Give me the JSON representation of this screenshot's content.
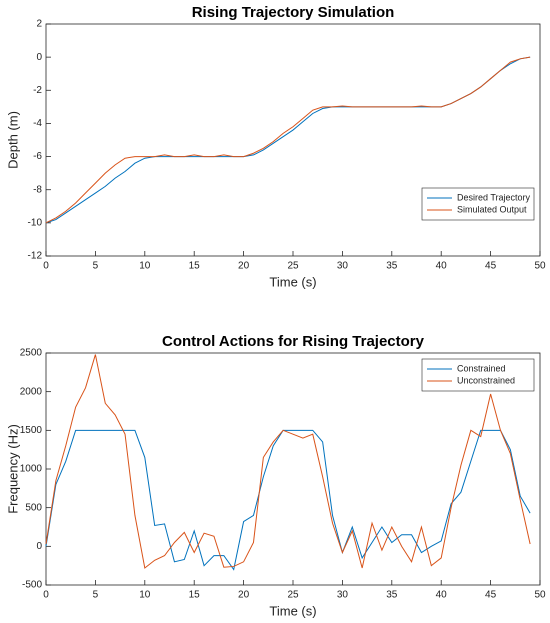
{
  "chart_data": [
    {
      "type": "line",
      "title": "Rising Trajectory Simulation",
      "xlabel": "Time (s)",
      "ylabel": "Depth (m)",
      "x": [
        0,
        1,
        2,
        3,
        4,
        5,
        6,
        7,
        8,
        9,
        10,
        11,
        12,
        13,
        14,
        15,
        16,
        17,
        18,
        19,
        20,
        21,
        22,
        23,
        24,
        25,
        26,
        27,
        28,
        29,
        30,
        31,
        32,
        33,
        34,
        35,
        36,
        37,
        38,
        39,
        40,
        41,
        42,
        43,
        44,
        45,
        46,
        47,
        48,
        49
      ],
      "series": [
        {
          "name": "Desired Trajectory",
          "color": "#0072BD",
          "values": [
            -10,
            -9.8,
            -9.4,
            -9.0,
            -8.6,
            -8.2,
            -7.8,
            -7.3,
            -6.9,
            -6.4,
            -6.1,
            -6.0,
            -6.0,
            -6.0,
            -6.0,
            -6.0,
            -6.0,
            -6.0,
            -6.0,
            -6.0,
            -6.0,
            -5.9,
            -5.6,
            -5.2,
            -4.8,
            -4.4,
            -3.9,
            -3.4,
            -3.1,
            -3.0,
            -3.0,
            -3.0,
            -3.0,
            -3.0,
            -3.0,
            -3.0,
            -3.0,
            -3.0,
            -3.0,
            -3.0,
            -3.0,
            -2.8,
            -2.5,
            -2.2,
            -1.8,
            -1.3,
            -0.8,
            -0.4,
            -0.1,
            0
          ]
        },
        {
          "name": "Simulated Output",
          "color": "#D95319",
          "values": [
            -10,
            -9.7,
            -9.3,
            -8.8,
            -8.2,
            -7.6,
            -7.0,
            -6.5,
            -6.1,
            -6.0,
            -6.0,
            -6.0,
            -5.9,
            -6.0,
            -6.0,
            -5.9,
            -6.0,
            -6.0,
            -5.9,
            -6.0,
            -6.0,
            -5.8,
            -5.5,
            -5.1,
            -4.6,
            -4.2,
            -3.7,
            -3.2,
            -3.0,
            -3.0,
            -2.95,
            -3.0,
            -3.0,
            -3.0,
            -3.0,
            -3.0,
            -3.0,
            -3.0,
            -2.95,
            -3.0,
            -3.0,
            -2.8,
            -2.5,
            -2.2,
            -1.8,
            -1.3,
            -0.8,
            -0.3,
            -0.1,
            0
          ]
        }
      ],
      "xlim": [
        0,
        50
      ],
      "xticks": [
        0,
        5,
        10,
        15,
        20,
        25,
        30,
        35,
        40,
        45,
        50
      ],
      "ylim": [
        -12,
        2
      ],
      "yticks": [
        -12,
        -10,
        -8,
        -6,
        -4,
        -2,
        0,
        2
      ],
      "legend": "lower right"
    },
    {
      "type": "line",
      "title": "Control Actions for Rising Trajectory",
      "xlabel": "Time (s)",
      "ylabel": "Frequency (Hz)",
      "x": [
        0,
        1,
        2,
        3,
        4,
        5,
        6,
        7,
        8,
        9,
        10,
        11,
        12,
        13,
        14,
        15,
        16,
        17,
        18,
        19,
        20,
        21,
        22,
        23,
        24,
        25,
        26,
        27,
        28,
        29,
        30,
        31,
        32,
        33,
        34,
        35,
        36,
        37,
        38,
        39,
        40,
        41,
        42,
        43,
        44,
        45,
        46,
        47,
        48,
        49
      ],
      "series": [
        {
          "name": "Constrained",
          "color": "#0072BD",
          "values": [
            0,
            800,
            1100,
            1500,
            1500,
            1500,
            1500,
            1500,
            1500,
            1500,
            1150,
            270,
            290,
            -200,
            -170,
            200,
            -250,
            -120,
            -120,
            -300,
            320,
            400,
            900,
            1300,
            1500,
            1500,
            1500,
            1500,
            1350,
            400,
            -80,
            250,
            -150,
            50,
            250,
            50,
            150,
            150,
            -80,
            0,
            70,
            550,
            700,
            1100,
            1500,
            1500,
            1500,
            1250,
            650,
            430
          ]
        },
        {
          "name": "Unconstrained",
          "color": "#D95319",
          "values": [
            30,
            850,
            1300,
            1800,
            2050,
            2480,
            1850,
            1700,
            1450,
            400,
            -280,
            -180,
            -120,
            50,
            180,
            -80,
            170,
            130,
            -270,
            -260,
            -200,
            50,
            1150,
            1350,
            1500,
            1450,
            1400,
            1450,
            900,
            300,
            -80,
            200,
            -280,
            300,
            -50,
            250,
            0,
            -200,
            250,
            -250,
            -150,
            500,
            1050,
            1500,
            1420,
            1970,
            1500,
            1200,
            600,
            30
          ]
        }
      ],
      "xlim": [
        0,
        50
      ],
      "xticks": [
        0,
        5,
        10,
        15,
        20,
        25,
        30,
        35,
        40,
        45,
        50
      ],
      "ylim": [
        -500,
        2500
      ],
      "yticks": [
        -500,
        0,
        500,
        1000,
        1500,
        2000,
        2500
      ],
      "legend": "upper right"
    }
  ]
}
